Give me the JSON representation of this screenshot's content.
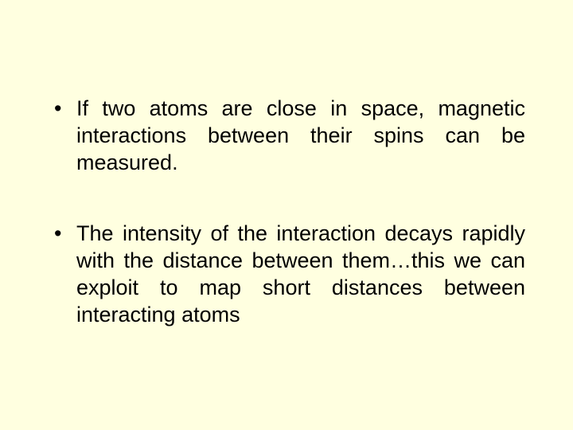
{
  "slide": {
    "background_color": "#ffffe0",
    "text_color": "#000000",
    "font_family": "Arial",
    "font_size_pt": 27,
    "bullets": [
      {
        "text": "If two atoms are close in space, magnetic interactions between their spins can be measured."
      },
      {
        "text": "The intensity of the interaction decays rapidly with the distance between them…this we can exploit to map short distances between interacting atoms"
      }
    ]
  }
}
